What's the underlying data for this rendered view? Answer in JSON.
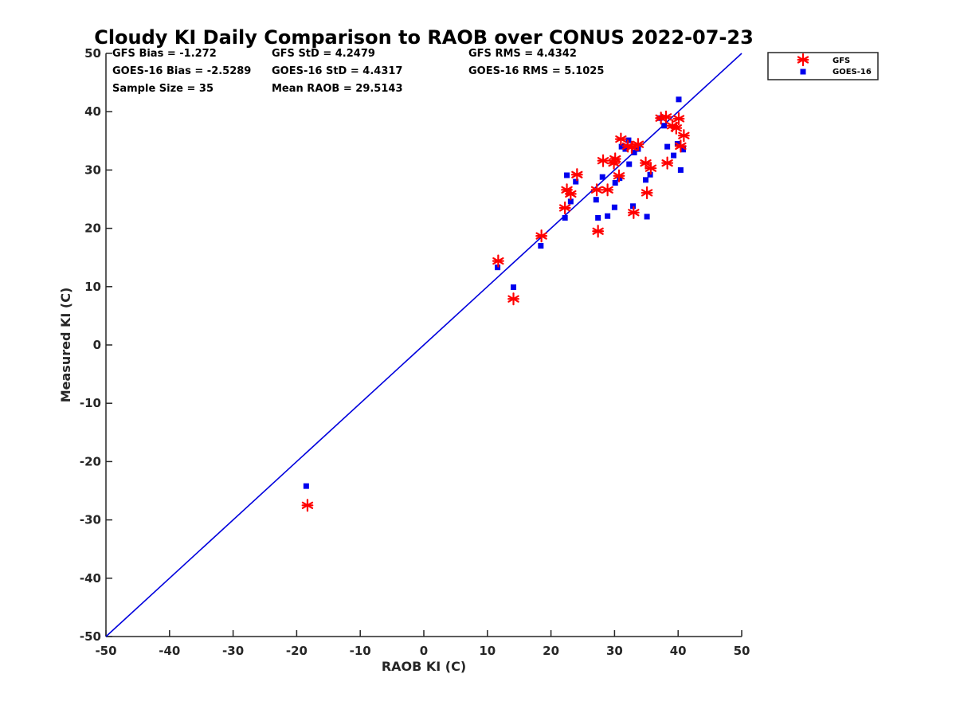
{
  "chart_data": {
    "type": "scatter",
    "title": "Cloudy KI Daily Comparison to RAOB over CONUS 2022-07-23",
    "xlabel": "RAOB KI (C)",
    "ylabel": "Measured KI (C)",
    "xlim": [
      -50,
      50
    ],
    "ylim": [
      -50,
      50
    ],
    "x_ticks": [
      "-50",
      "-40",
      "-30",
      "-20",
      "-10",
      "0",
      "10",
      "20",
      "30",
      "40",
      "50"
    ],
    "y_ticks": [
      "-50",
      "-40",
      "-30",
      "-20",
      "-10",
      "0",
      "10",
      "20",
      "30",
      "40",
      "50"
    ],
    "grid": false,
    "legend_position": "outside-top-right",
    "reference_line": {
      "type": "one-to-one",
      "color": "#0000dd"
    },
    "stats": [
      "GFS Bias = -1.272",
      "GFS StD = 4.2479",
      "GFS RMS = 4.4342",
      "GOES-16 Bias = -2.5289",
      "GOES-16 StD = 4.4317",
      "GOES-16 RMS = 5.1025",
      "Sample Size = 35",
      "Mean RAOB = 29.5143"
    ],
    "series": [
      {
        "name": "GFS",
        "marker": "asterisk",
        "color": "#ff0000",
        "points": [
          [
            -18.3,
            -27.5
          ],
          [
            11.7,
            14.4
          ],
          [
            14.1,
            7.9
          ],
          [
            18.5,
            18.7
          ],
          [
            22.2,
            23.5
          ],
          [
            22.5,
            26.6
          ],
          [
            23.1,
            25.9
          ],
          [
            24.1,
            29.2
          ],
          [
            27.2,
            26.6
          ],
          [
            27.4,
            19.5
          ],
          [
            28.2,
            31.6
          ],
          [
            28.9,
            26.6
          ],
          [
            29.9,
            31.2
          ],
          [
            30.1,
            31.9
          ],
          [
            30.7,
            29.0
          ],
          [
            31.0,
            35.3
          ],
          [
            32.1,
            34.1
          ],
          [
            32.7,
            33.9
          ],
          [
            33.0,
            22.7
          ],
          [
            33.7,
            34.4
          ],
          [
            34.9,
            31.2
          ],
          [
            35.1,
            26.1
          ],
          [
            35.7,
            30.3
          ],
          [
            37.3,
            38.9
          ],
          [
            38.1,
            39.1
          ],
          [
            38.3,
            31.2
          ],
          [
            39.1,
            37.6
          ],
          [
            39.7,
            37.2
          ],
          [
            40.1,
            38.8
          ],
          [
            40.4,
            34.1
          ],
          [
            40.9,
            35.9
          ]
        ]
      },
      {
        "name": "GOES-16",
        "marker": "square",
        "color": "#0000ee",
        "points": [
          [
            -18.5,
            -24.2
          ],
          [
            11.6,
            13.3
          ],
          [
            14.1,
            9.9
          ],
          [
            18.4,
            17.0
          ],
          [
            22.2,
            21.8
          ],
          [
            22.5,
            29.1
          ],
          [
            23.1,
            24.6
          ],
          [
            23.9,
            28.0
          ],
          [
            27.1,
            24.9
          ],
          [
            27.4,
            21.8
          ],
          [
            28.1,
            28.8
          ],
          [
            28.9,
            22.1
          ],
          [
            30.0,
            23.6
          ],
          [
            30.1,
            27.8
          ],
          [
            30.8,
            28.6
          ],
          [
            31.1,
            34.0
          ],
          [
            31.7,
            33.6
          ],
          [
            32.2,
            35.1
          ],
          [
            32.3,
            31.0
          ],
          [
            32.9,
            23.8
          ],
          [
            33.1,
            33.0
          ],
          [
            33.7,
            33.6
          ],
          [
            34.9,
            28.3
          ],
          [
            35.1,
            22.0
          ],
          [
            35.6,
            29.2
          ],
          [
            37.1,
            38.9
          ],
          [
            37.8,
            37.6
          ],
          [
            38.3,
            34.0
          ],
          [
            39.3,
            32.5
          ],
          [
            39.9,
            34.5
          ],
          [
            40.1,
            42.1
          ],
          [
            40.4,
            30.0
          ],
          [
            40.8,
            33.5
          ]
        ]
      }
    ]
  }
}
